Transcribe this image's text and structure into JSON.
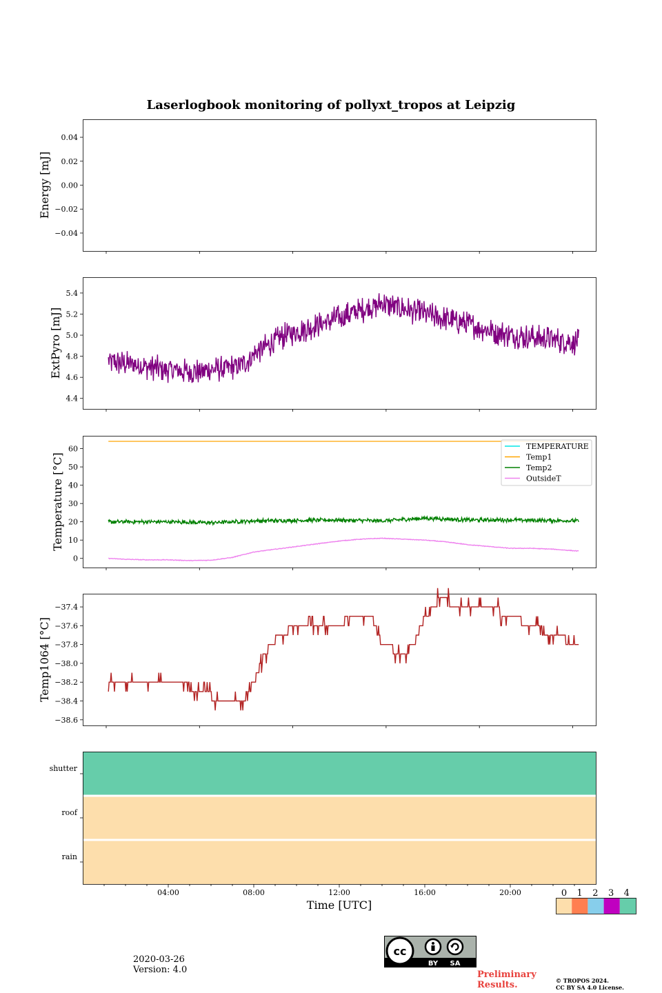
{
  "title": "Laserlogbook monitoring of pollyxt_tropos at Leipzig",
  "footer": {
    "date": "2020-03-26",
    "version": "Version: 4.0",
    "preliminary_line1": "Preliminary",
    "preliminary_line2": "Results.",
    "copyright_line1": "© TROPOS 2024.",
    "copyright_line2": "CC BY SA 4.0 License.",
    "cc_by": "BY",
    "cc_sa": "SA"
  },
  "colors": {
    "TEMPERATURE": "#00e5e5",
    "Temp1": "#ffa500",
    "Temp2": "#008000",
    "OutsideT": "#ee82ee",
    "ExtPyro": "#800080",
    "Temp1064": "#b22222"
  },
  "chart_data": [
    {
      "type": "line",
      "name": "energy",
      "ylabel": "Energy [mJ]",
      "xlim": [
        0,
        24
      ],
      "ylim": [
        -0.055,
        0.055
      ],
      "yticks": [
        -0.04,
        -0.02,
        0.0,
        0.02,
        0.04
      ],
      "ytick_labels": [
        "−0.04",
        "−0.02",
        "0.00",
        "0.02",
        "0.04"
      ],
      "series": []
    },
    {
      "type": "line",
      "name": "extpyro",
      "ylabel": "ExtPyro [mJ]",
      "xlim": [
        0,
        24
      ],
      "ylim": [
        4.3,
        5.55
      ],
      "yticks": [
        4.4,
        4.6,
        4.8,
        5.0,
        5.2,
        5.4
      ],
      "ytick_labels": [
        "4.4",
        "4.6",
        "4.8",
        "5.0",
        "5.2",
        "5.4"
      ],
      "series": [
        {
          "name": "ExtPyro",
          "color": "#800080",
          "noise": 0.13,
          "knots": [
            [
              1.2,
              4.75
            ],
            [
              3,
              4.7
            ],
            [
              5,
              4.65
            ],
            [
              6.5,
              4.68
            ],
            [
              7.5,
              4.72
            ],
            [
              8.2,
              4.85
            ],
            [
              9.5,
              5.0
            ],
            [
              11,
              5.1
            ],
            [
              12.5,
              5.2
            ],
            [
              14,
              5.3
            ],
            [
              16,
              5.2
            ],
            [
              18,
              5.1
            ],
            [
              20,
              5.0
            ],
            [
              21.5,
              4.97
            ],
            [
              23.2,
              4.93
            ]
          ]
        }
      ]
    },
    {
      "type": "line",
      "name": "temperature",
      "ylabel": "Temperature [°C]",
      "xlim": [
        0,
        24
      ],
      "ylim": [
        -5,
        67
      ],
      "yticks": [
        0,
        10,
        20,
        30,
        40,
        50,
        60
      ],
      "ytick_labels": [
        "0",
        "10",
        "20",
        "30",
        "40",
        "50",
        "60"
      ],
      "legend": {
        "position": "top-right",
        "entries": [
          "TEMPERATURE",
          "Temp1",
          "Temp2",
          "OutsideT"
        ]
      },
      "series": [
        {
          "name": "TEMPERATURE",
          "color": "#00e5e5",
          "knots": []
        },
        {
          "name": "Temp1",
          "color": "#ffa500",
          "noise": 0,
          "knots": [
            [
              1.2,
              64
            ],
            [
              23.2,
              64
            ]
          ]
        },
        {
          "name": "Temp2",
          "color": "#008000",
          "noise": 1.2,
          "knots": [
            [
              1.2,
              20
            ],
            [
              4,
              20
            ],
            [
              6,
              19.5
            ],
            [
              8,
              20.5
            ],
            [
              12,
              21
            ],
            [
              14,
              20.5
            ],
            [
              16,
              22
            ],
            [
              18,
              21
            ],
            [
              20,
              21
            ],
            [
              23.2,
              20.5
            ]
          ]
        },
        {
          "name": "OutsideT",
          "color": "#ee82ee",
          "noise": 0.2,
          "knots": [
            [
              1.2,
              0
            ],
            [
              2,
              -0.5
            ],
            [
              3,
              -0.8
            ],
            [
              4,
              -0.8
            ],
            [
              5,
              -1.2
            ],
            [
              6,
              -1
            ],
            [
              7,
              0.5
            ],
            [
              8,
              3.5
            ],
            [
              9,
              5
            ],
            [
              10,
              6.5
            ],
            [
              11,
              8
            ],
            [
              12,
              9.5
            ],
            [
              13,
              10.5
            ],
            [
              14,
              11
            ],
            [
              15,
              10.5
            ],
            [
              16,
              10
            ],
            [
              17,
              9
            ],
            [
              18,
              7.5
            ],
            [
              19,
              6.5
            ],
            [
              20,
              5.5
            ],
            [
              21,
              5.5
            ],
            [
              22,
              5
            ],
            [
              23.2,
              4
            ]
          ]
        }
      ]
    },
    {
      "type": "line",
      "name": "temp1064",
      "ylabel": "Temp1064 [°C]",
      "xlim": [
        0,
        24
      ],
      "ylim": [
        -38.66,
        -37.26
      ],
      "yticks": [
        -38.6,
        -38.4,
        -38.2,
        -38.0,
        -37.8,
        -37.6,
        -37.4
      ],
      "ytick_labels": [
        "−38.6",
        "−38.4",
        "−38.2",
        "−38.0",
        "−37.8",
        "−37.6",
        "−37.4"
      ],
      "series": [
        {
          "name": "Temp1064",
          "color": "#b22222",
          "step": 0.1,
          "flicker": 0.05,
          "knots": [
            [
              1.2,
              -38.2
            ],
            [
              4.5,
              -38.2
            ],
            [
              5.5,
              -38.3
            ],
            [
              6.5,
              -38.4
            ],
            [
              7.5,
              -38.4
            ],
            [
              8,
              -38.2
            ],
            [
              8.5,
              -37.9
            ],
            [
              9.2,
              -37.7
            ],
            [
              10,
              -37.6
            ],
            [
              12,
              -37.6
            ],
            [
              12.5,
              -37.5
            ],
            [
              13.5,
              -37.5
            ],
            [
              14,
              -37.8
            ],
            [
              15,
              -37.9
            ],
            [
              15.5,
              -37.8
            ],
            [
              16,
              -37.5
            ],
            [
              16.8,
              -37.3
            ],
            [
              17.5,
              -37.4
            ],
            [
              19,
              -37.4
            ],
            [
              20,
              -37.5
            ],
            [
              21,
              -37.6
            ],
            [
              22,
              -37.7
            ],
            [
              23.2,
              -37.8
            ]
          ]
        }
      ]
    },
    {
      "type": "heatmap",
      "name": "status",
      "xlabel": "Time [UTC]",
      "xlim": [
        0,
        24
      ],
      "xticks": [
        4,
        8,
        12,
        16,
        20
      ],
      "xtick_labels": [
        "04:00",
        "08:00",
        "12:00",
        "16:00",
        "20:00"
      ],
      "rows": [
        {
          "label": "shutter",
          "value": 4
        },
        {
          "label": "roof",
          "value": 0
        },
        {
          "label": "rain",
          "value": 0
        }
      ],
      "colorbar": {
        "labels": [
          "0",
          "1",
          "2",
          "3",
          "4"
        ],
        "colors": [
          "#fddeac",
          "#ff7f50",
          "#87ceeb",
          "#c000c0",
          "#66cdaa"
        ]
      }
    }
  ]
}
